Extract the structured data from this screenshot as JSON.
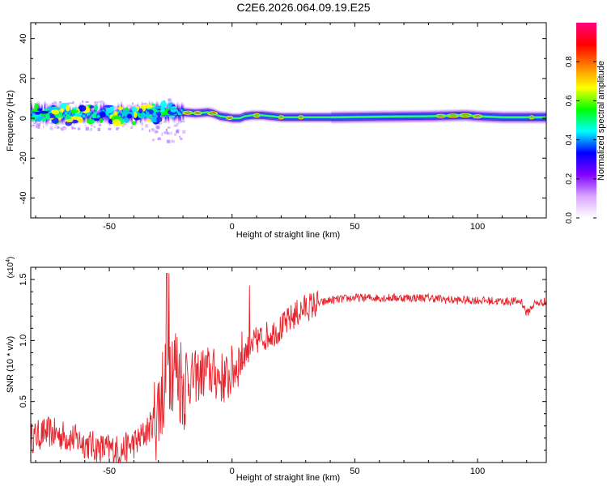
{
  "title": "C2E6.2026.064.09.19.E25",
  "chart_data": [
    {
      "type": "heatmap",
      "xlabel": "Height of straight line (km)",
      "ylabel": "Frequency (Hz)",
      "xlim": [
        -82,
        128
      ],
      "ylim": [
        -50,
        48
      ],
      "xticks": [
        -50,
        0,
        50,
        100
      ],
      "yticks": [
        -40,
        -20,
        0,
        20,
        40
      ],
      "colorbar": {
        "label": "Normalized spectral amplitude",
        "range": [
          0,
          1
        ],
        "ticks": [
          "0.0",
          "0.2",
          "0.4",
          "0.6",
          "0.8"
        ],
        "colors": [
          "#ffffff",
          "#d9a6ff",
          "#8000ff",
          "#0000ff",
          "#00ffff",
          "#00ff00",
          "#ffff00",
          "#ff8000",
          "#ff0000",
          "#ff0080"
        ]
      },
      "ridge": {
        "x": [
          -82,
          -60,
          -40,
          -25,
          -20,
          -15,
          -10,
          -8,
          -5,
          -2,
          0,
          3,
          5,
          8,
          12,
          20,
          40,
          60,
          80,
          95,
          100,
          110,
          128
        ],
        "y": [
          2,
          2,
          2,
          3,
          3,
          2.5,
          3,
          2.5,
          1,
          0.5,
          0,
          0,
          1,
          1.5,
          1.5,
          0.5,
          0.5,
          0.8,
          1,
          1.5,
          1,
          0.5,
          0.5
        ]
      }
    },
    {
      "type": "line",
      "xlabel": "Height of straight line (km)",
      "ylabel": "SNR (10 * v/v)",
      "multiplier_label": "(x10",
      "multiplier_exp": "4",
      "xlim": [
        -82,
        128
      ],
      "ylim": [
        0,
        1.6
      ],
      "xticks": [
        -50,
        0,
        50,
        100
      ],
      "yticks": [
        "0.5",
        "1.0",
        "1.5"
      ],
      "series": [
        {
          "color": "#e8222b",
          "x": [
            -82,
            -75,
            -65,
            -55,
            -45,
            -38,
            -33,
            -30,
            -27,
            -25,
            -22,
            -20,
            -15,
            -10,
            -5,
            -2,
            0,
            5,
            10,
            15,
            20,
            25,
            30,
            35,
            40,
            50,
            60,
            70,
            80,
            90,
            100,
            110,
            118,
            120,
            123,
            128
          ],
          "y": [
            0.2,
            0.25,
            0.2,
            0.12,
            0.1,
            0.18,
            0.3,
            0.45,
            0.7,
            0.85,
            0.75,
            0.65,
            0.7,
            0.75,
            0.7,
            0.68,
            0.75,
            0.9,
            1.0,
            1.05,
            1.1,
            1.2,
            1.27,
            1.3,
            1.33,
            1.35,
            1.35,
            1.35,
            1.35,
            1.33,
            1.33,
            1.32,
            1.32,
            1.22,
            1.3,
            1.32
          ]
        }
      ]
    }
  ]
}
